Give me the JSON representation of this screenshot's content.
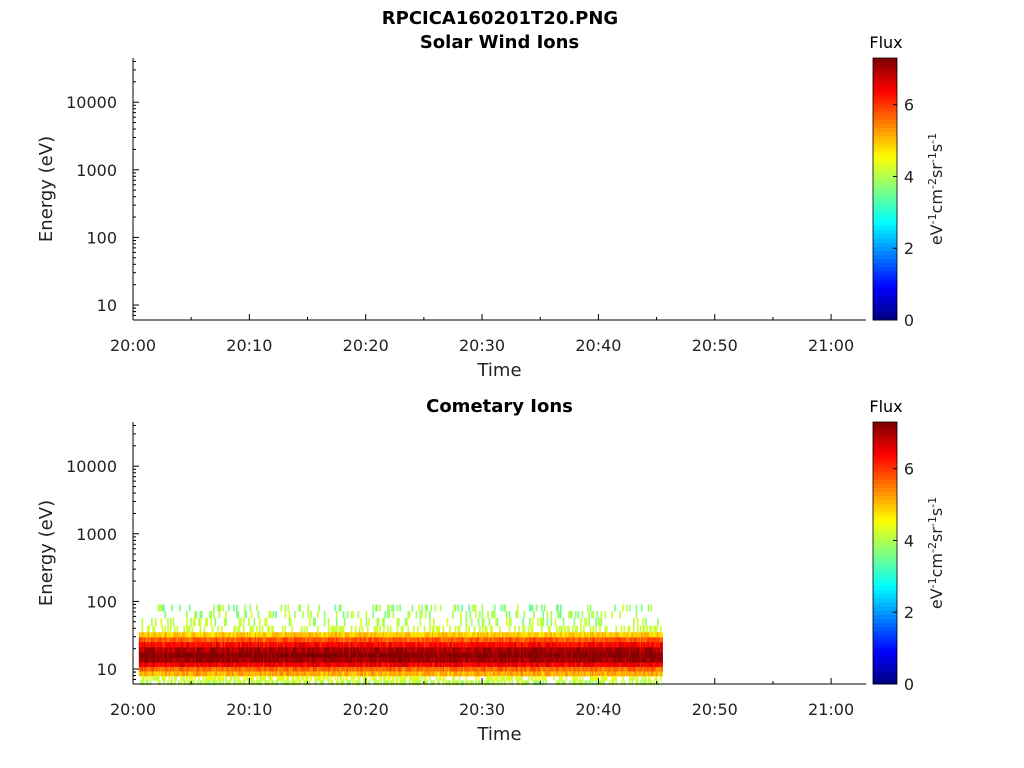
{
  "figure": {
    "title": "RPCICA160201T20.PNG"
  },
  "chart_data": [
    {
      "type": "heatmap",
      "title": "Solar Wind Ions",
      "xlabel": "Time",
      "ylabel": "Energy (eV)",
      "x_ticks": [
        "20:00",
        "20:10",
        "20:20",
        "20:30",
        "20:40",
        "20:50",
        "21:00"
      ],
      "xlim_minutes": [
        0,
        63
      ],
      "y_scale": "log",
      "y_ticks": [
        10,
        100,
        1000,
        10000
      ],
      "y_tick_labels": [
        "10",
        "100",
        "1000",
        "10000"
      ],
      "ylim": [
        6,
        45000
      ],
      "colorbar": {
        "title": "Flux",
        "label": "eV-1cm-2sr-1s-1",
        "range": [
          0,
          7.3
        ],
        "ticks": [
          0,
          2,
          4,
          6
        ],
        "tick_labels": [
          "0",
          "2",
          "4",
          "6"
        ],
        "colormap": "jet"
      },
      "data_coverage_minutes": [
        0,
        0
      ],
      "description_of_values": "no significant flux"
    },
    {
      "type": "heatmap",
      "title": "Cometary Ions",
      "xlabel": "Time",
      "ylabel": "Energy (eV)",
      "x_ticks": [
        "20:00",
        "20:10",
        "20:20",
        "20:30",
        "20:40",
        "20:50",
        "21:00"
      ],
      "xlim_minutes": [
        0,
        63
      ],
      "y_scale": "log",
      "y_ticks": [
        10,
        100,
        1000,
        10000
      ],
      "y_tick_labels": [
        "10",
        "100",
        "1000",
        "10000"
      ],
      "ylim": [
        6,
        45000
      ],
      "colorbar": {
        "title": "Flux",
        "label": "eV-1cm-2sr-1s-1",
        "range": [
          0,
          7.3
        ],
        "ticks": [
          0,
          2,
          4,
          6
        ],
        "tick_labels": [
          "0",
          "2",
          "4",
          "6"
        ],
        "colormap": "jet"
      },
      "data_coverage_minutes": [
        0.5,
        45.5
      ],
      "energy_profile": [
        {
          "energy_eV": 80,
          "flux": 3.8
        },
        {
          "energy_eV": 65,
          "flux": 3.9
        },
        {
          "energy_eV": 50,
          "flux": 4.0
        },
        {
          "energy_eV": 38,
          "flux": 4.2
        },
        {
          "energy_eV": 32,
          "flux": 4.8
        },
        {
          "energy_eV": 27,
          "flux": 5.6
        },
        {
          "energy_eV": 23,
          "flux": 6.2
        },
        {
          "energy_eV": 19,
          "flux": 6.8
        },
        {
          "energy_eV": 16,
          "flux": 7.1
        },
        {
          "energy_eV": 13.5,
          "flux": 6.9
        },
        {
          "energy_eV": 11.5,
          "flux": 6.3
        },
        {
          "energy_eV": 10,
          "flux": 5.5
        },
        {
          "energy_eV": 8.5,
          "flux": 5.0
        },
        {
          "energy_eV": 7.3,
          "flux": 4.6
        },
        {
          "energy_eV": 6.3,
          "flux": 4.3
        }
      ]
    }
  ]
}
